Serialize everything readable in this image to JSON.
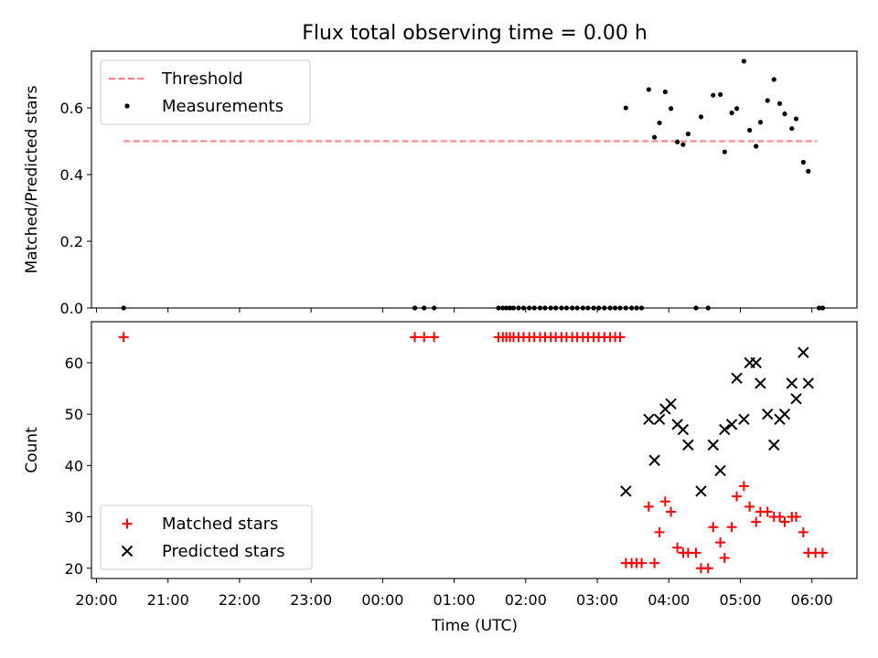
{
  "chart_data": {
    "type": "scatter",
    "title": "Flux total observing time = 0.00 h",
    "xlabel": "Time (UTC)",
    "x_tick_labels": [
      "20:00",
      "21:00",
      "22:00",
      "23:00",
      "00:00",
      "01:00",
      "02:00",
      "03:00",
      "04:00",
      "05:00",
      "06:00"
    ],
    "x_range_hours": [
      19.93,
      30.63
    ],
    "panels": [
      {
        "id": "ratio",
        "ylabel": "Matched/Predicted stars",
        "ylim": [
          0,
          0.77
        ],
        "y_ticks": [
          0.0,
          0.2,
          0.4,
          0.6
        ],
        "y_tick_labels": [
          "0.0",
          "0.2",
          "0.4",
          "0.6"
        ],
        "legend_position": "upper-left",
        "threshold": {
          "name": "Threshold",
          "value": 0.5,
          "x_start": 20.38,
          "x_end": 30.07,
          "color": "#ff7f7f"
        },
        "series": [
          {
            "name": "Measurements",
            "marker": "dot",
            "color": "#000000",
            "points": [
              [
                20.38,
                0
              ],
              [
                24.45,
                0
              ],
              [
                24.58,
                0
              ],
              [
                24.72,
                0
              ],
              [
                25.62,
                0
              ],
              [
                25.68,
                0
              ],
              [
                25.73,
                0
              ],
              [
                25.78,
                0
              ],
              [
                25.83,
                0
              ],
              [
                25.9,
                0
              ],
              [
                25.97,
                0
              ],
              [
                26.05,
                0
              ],
              [
                26.12,
                0
              ],
              [
                26.2,
                0
              ],
              [
                26.27,
                0
              ],
              [
                26.35,
                0
              ],
              [
                26.42,
                0
              ],
              [
                26.5,
                0
              ],
              [
                26.57,
                0
              ],
              [
                26.65,
                0
              ],
              [
                26.72,
                0
              ],
              [
                26.8,
                0
              ],
              [
                26.87,
                0
              ],
              [
                26.95,
                0
              ],
              [
                27.02,
                0
              ],
              [
                27.1,
                0
              ],
              [
                27.18,
                0
              ],
              [
                27.25,
                0
              ],
              [
                27.32,
                0
              ],
              [
                27.4,
                0
              ],
              [
                27.48,
                0
              ],
              [
                27.55,
                0
              ],
              [
                27.62,
                0
              ],
              [
                28.38,
                0
              ],
              [
                28.55,
                0
              ],
              [
                30.1,
                0
              ],
              [
                30.15,
                0
              ],
              [
                27.4,
                0.6
              ],
              [
                27.72,
                0.655
              ],
              [
                27.8,
                0.512
              ],
              [
                27.87,
                0.555
              ],
              [
                27.95,
                0.648
              ],
              [
                28.03,
                0.598
              ],
              [
                28.12,
                0.498
              ],
              [
                28.2,
                0.49
              ],
              [
                28.27,
                0.522
              ],
              [
                28.45,
                0.573
              ],
              [
                28.62,
                0.638
              ],
              [
                28.72,
                0.64
              ],
              [
                28.78,
                0.468
              ],
              [
                28.88,
                0.585
              ],
              [
                28.95,
                0.598
              ],
              [
                29.05,
                0.74
              ],
              [
                29.13,
                0.533
              ],
              [
                29.22,
                0.485
              ],
              [
                29.28,
                0.557
              ],
              [
                29.38,
                0.622
              ],
              [
                29.47,
                0.685
              ],
              [
                29.55,
                0.613
              ],
              [
                29.62,
                0.582
              ],
              [
                29.72,
                0.538
              ],
              [
                29.78,
                0.567
              ],
              [
                29.88,
                0.437
              ],
              [
                29.95,
                0.41
              ]
            ]
          }
        ]
      },
      {
        "id": "counts",
        "ylabel": "Count",
        "ylim": [
          18,
          68
        ],
        "y_ticks": [
          20,
          30,
          40,
          50,
          60
        ],
        "y_tick_labels": [
          "20",
          "30",
          "40",
          "50",
          "60"
        ],
        "legend_position": "lower-left",
        "series": [
          {
            "name": "Matched stars",
            "marker": "plus",
            "color": "#ff0000",
            "points": [
              [
                20.38,
                65
              ],
              [
                24.45,
                65
              ],
              [
                24.58,
                65
              ],
              [
                24.72,
                65
              ],
              [
                25.62,
                65
              ],
              [
                25.68,
                65
              ],
              [
                25.73,
                65
              ],
              [
                25.78,
                65
              ],
              [
                25.83,
                65
              ],
              [
                25.9,
                65
              ],
              [
                25.97,
                65
              ],
              [
                26.05,
                65
              ],
              [
                26.12,
                65
              ],
              [
                26.2,
                65
              ],
              [
                26.27,
                65
              ],
              [
                26.35,
                65
              ],
              [
                26.42,
                65
              ],
              [
                26.5,
                65
              ],
              [
                26.57,
                65
              ],
              [
                26.65,
                65
              ],
              [
                26.72,
                65
              ],
              [
                26.8,
                65
              ],
              [
                26.87,
                65
              ],
              [
                26.95,
                65
              ],
              [
                27.02,
                65
              ],
              [
                27.1,
                65
              ],
              [
                27.18,
                65
              ],
              [
                27.25,
                65
              ],
              [
                27.32,
                65
              ],
              [
                27.4,
                21
              ],
              [
                27.48,
                21
              ],
              [
                27.55,
                21
              ],
              [
                27.62,
                21
              ],
              [
                27.72,
                32
              ],
              [
                27.8,
                21
              ],
              [
                27.87,
                27
              ],
              [
                27.95,
                33
              ],
              [
                28.03,
                31
              ],
              [
                28.12,
                24
              ],
              [
                28.2,
                23
              ],
              [
                28.27,
                23
              ],
              [
                28.38,
                23
              ],
              [
                28.45,
                20
              ],
              [
                28.55,
                20
              ],
              [
                28.62,
                28
              ],
              [
                28.72,
                25
              ],
              [
                28.78,
                22
              ],
              [
                28.88,
                28
              ],
              [
                28.95,
                34
              ],
              [
                29.05,
                36
              ],
              [
                29.13,
                32
              ],
              [
                29.22,
                29
              ],
              [
                29.28,
                31
              ],
              [
                29.38,
                31
              ],
              [
                29.47,
                30
              ],
              [
                29.55,
                30
              ],
              [
                29.62,
                29
              ],
              [
                29.72,
                30
              ],
              [
                29.78,
                30
              ],
              [
                29.88,
                27
              ],
              [
                29.95,
                23
              ],
              [
                30.05,
                23
              ],
              [
                30.15,
                23
              ]
            ]
          },
          {
            "name": "Predicted stars",
            "marker": "x",
            "color": "#000000",
            "points": [
              [
                27.4,
                35
              ],
              [
                27.72,
                49
              ],
              [
                27.8,
                41
              ],
              [
                27.87,
                49
              ],
              [
                27.95,
                51
              ],
              [
                28.03,
                52
              ],
              [
                28.12,
                48
              ],
              [
                28.2,
                47
              ],
              [
                28.27,
                44
              ],
              [
                28.45,
                35
              ],
              [
                28.62,
                44
              ],
              [
                28.72,
                39
              ],
              [
                28.78,
                47
              ],
              [
                28.88,
                48
              ],
              [
                28.95,
                57
              ],
              [
                29.05,
                49
              ],
              [
                29.13,
                60
              ],
              [
                29.22,
                60
              ],
              [
                29.28,
                56
              ],
              [
                29.38,
                50
              ],
              [
                29.47,
                44
              ],
              [
                29.55,
                49
              ],
              [
                29.62,
                50
              ],
              [
                29.72,
                56
              ],
              [
                29.78,
                53
              ],
              [
                29.88,
                62
              ],
              [
                29.95,
                56
              ]
            ]
          }
        ]
      }
    ]
  }
}
